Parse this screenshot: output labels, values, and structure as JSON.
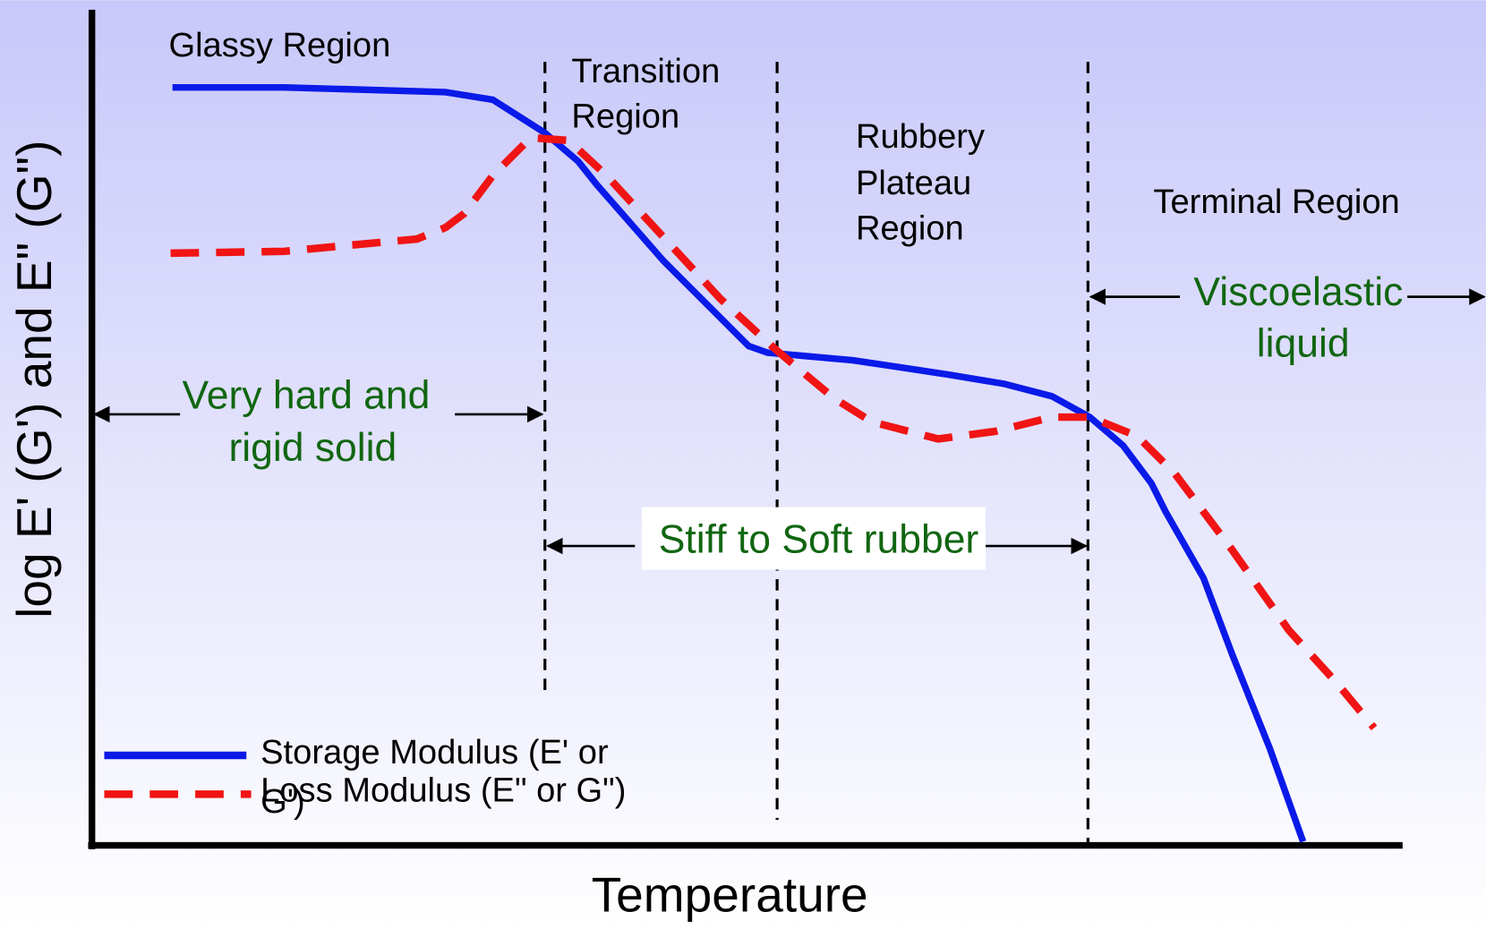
{
  "regions": [
    {
      "lines": [
        "Glassy Region"
      ]
    },
    {
      "lines": [
        "Transition",
        "Region"
      ]
    },
    {
      "lines": [
        "Rubbery",
        "Plateau",
        "Region"
      ]
    },
    {
      "lines": [
        "Terminal Region"
      ]
    }
  ],
  "annotations": [
    {
      "lines": [
        "Very hard and",
        "rigid solid"
      ]
    },
    {
      "lines": [
        "Stiff to Soft rubber"
      ]
    },
    {
      "lines": [
        "Viscoelastic",
        "liquid"
      ]
    }
  ],
  "legend": [
    {
      "lines": [
        "Storage Modulus (E' or",
        "G')"
      ]
    },
    {
      "lines": [
        "Loss Modulus (E\" or G\")"
      ]
    }
  ],
  "x_axis_label": "Temperature",
  "y_axis_label": "log E' (G') and E\" (G\")"
}
